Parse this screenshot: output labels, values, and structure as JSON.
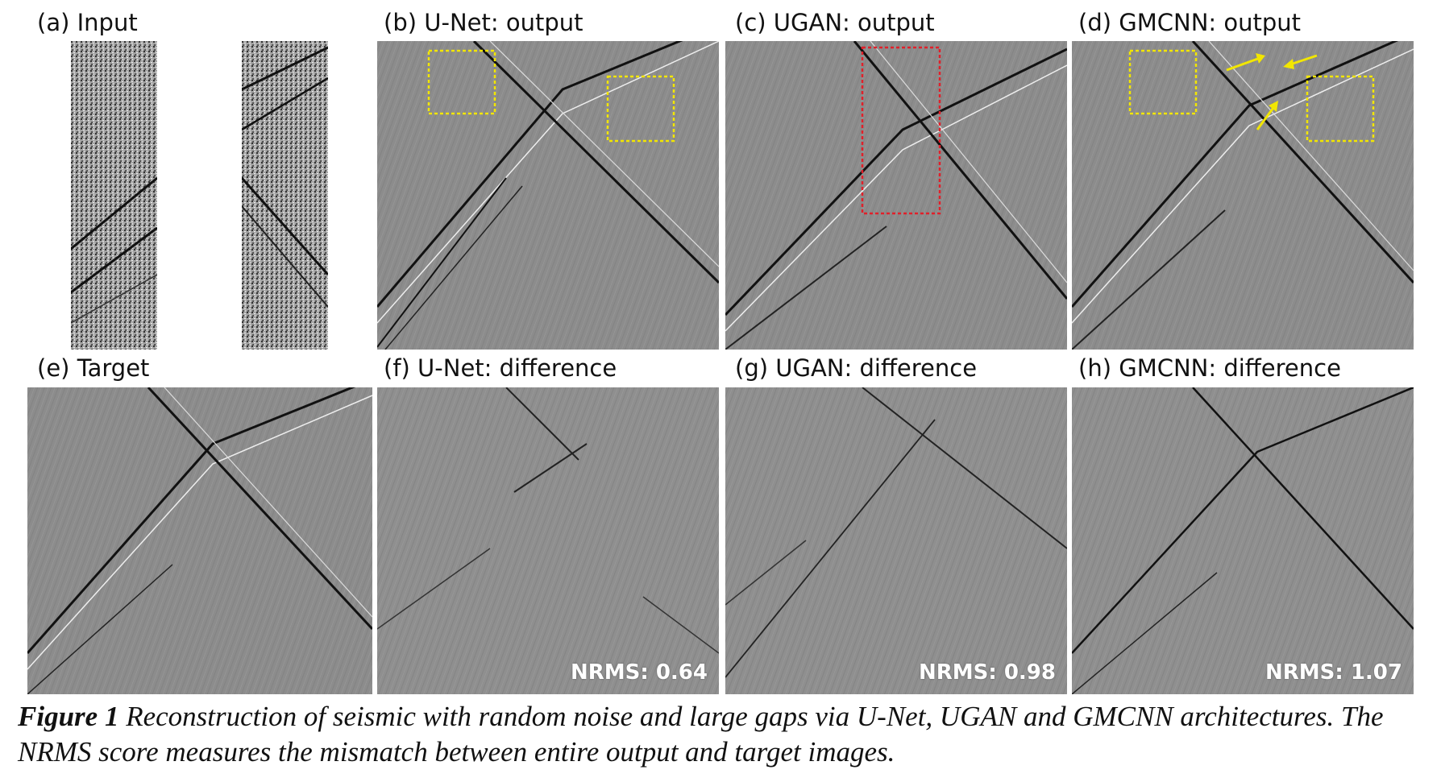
{
  "figure": {
    "panels": [
      {
        "id": "a",
        "label": "(a) Input"
      },
      {
        "id": "b",
        "label": "(b) U-Net: output"
      },
      {
        "id": "c",
        "label": "(c) UGAN: output"
      },
      {
        "id": "d",
        "label": "(d) GMCNN: output"
      },
      {
        "id": "e",
        "label": "(e) Target"
      },
      {
        "id": "f",
        "label": "(f) U-Net: difference",
        "nrms": "NRMS: 0.64"
      },
      {
        "id": "g",
        "label": "(g) UGAN: difference",
        "nrms": "NRMS: 0.98"
      },
      {
        "id": "h",
        "label": "(h) GMCNN: difference",
        "nrms": "NRMS: 1.07"
      }
    ],
    "caption": {
      "figure_number": "Figure 1",
      "text": " Reconstruction of seismic with random noise and large gaps via U-Net, UGAN and GMCNN architectures. The NRMS score measures the mismatch between entire output and target images."
    },
    "colors": {
      "seismic_background": "#8a8a8a",
      "highlight_box_yellow": "#f2e600",
      "highlight_box_red": "#e0202a",
      "arrow_yellow": "#f2e600"
    }
  }
}
